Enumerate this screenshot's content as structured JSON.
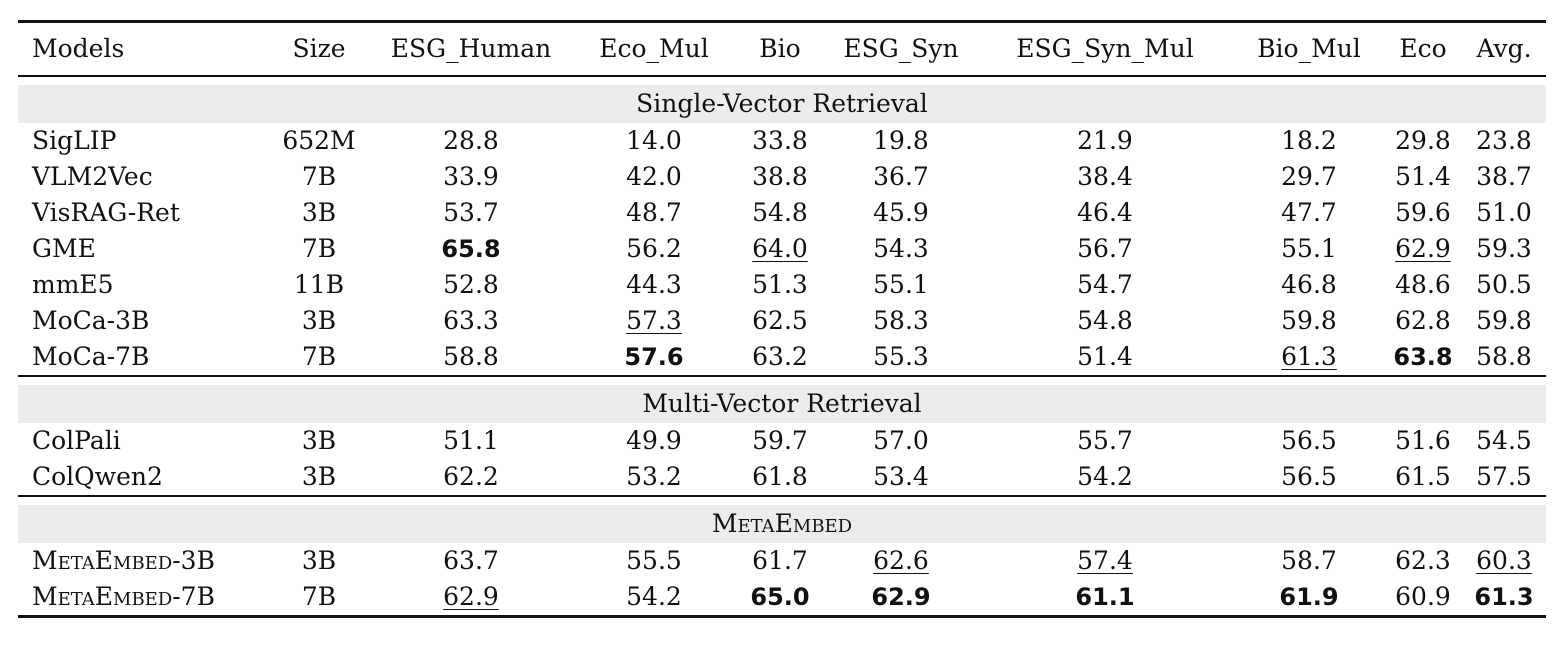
{
  "columns": [
    "Models",
    "Size",
    "ESG_Human",
    "Eco_Mul",
    "Bio",
    "ESG_Syn",
    "ESG_Syn_Mul",
    "Bio_Mul",
    "Eco",
    "Avg."
  ],
  "sections": [
    {
      "title": "Single-Vector Retrieval",
      "rows": [
        {
          "cells": [
            "SigLIP",
            "652M",
            "28.8",
            "14.0",
            "33.8",
            "19.8",
            "21.9",
            "18.2",
            "29.8",
            "23.8"
          ],
          "bold": [],
          "underline": []
        },
        {
          "cells": [
            "VLM2Vec",
            "7B",
            "33.9",
            "42.0",
            "38.8",
            "36.7",
            "38.4",
            "29.7",
            "51.4",
            "38.7"
          ],
          "bold": [],
          "underline": []
        },
        {
          "cells": [
            "VisRAG-Ret",
            "3B",
            "53.7",
            "48.7",
            "54.8",
            "45.9",
            "46.4",
            "47.7",
            "59.6",
            "51.0"
          ],
          "bold": [],
          "underline": []
        },
        {
          "cells": [
            "GME",
            "7B",
            "65.8",
            "56.2",
            "64.0",
            "54.3",
            "56.7",
            "55.1",
            "62.9",
            "59.3"
          ],
          "bold": [
            2
          ],
          "underline": [
            4,
            8
          ]
        },
        {
          "cells": [
            "mmE5",
            "11B",
            "52.8",
            "44.3",
            "51.3",
            "55.1",
            "54.7",
            "46.8",
            "48.6",
            "50.5"
          ],
          "bold": [],
          "underline": []
        },
        {
          "cells": [
            "MoCa-3B",
            "3B",
            "63.3",
            "57.3",
            "62.5",
            "58.3",
            "54.8",
            "59.8",
            "62.8",
            "59.8"
          ],
          "bold": [],
          "underline": [
            3
          ]
        },
        {
          "cells": [
            "MoCa-7B",
            "7B",
            "58.8",
            "57.6",
            "63.2",
            "55.3",
            "51.4",
            "61.3",
            "63.8",
            "58.8"
          ],
          "bold": [
            3,
            8
          ],
          "underline": [
            7
          ]
        }
      ]
    },
    {
      "title": "Multi-Vector Retrieval",
      "rows": [
        {
          "cells": [
            "ColPali",
            "3B",
            "51.1",
            "49.9",
            "59.7",
            "57.0",
            "55.7",
            "56.5",
            "51.6",
            "54.5"
          ],
          "bold": [],
          "underline": []
        },
        {
          "cells": [
            "ColQwen2",
            "3B",
            "62.2",
            "53.2",
            "61.8",
            "53.4",
            "54.2",
            "56.5",
            "61.5",
            "57.5"
          ],
          "bold": [],
          "underline": []
        }
      ]
    },
    {
      "title": "MetaEmbed",
      "smallcaps": true,
      "rows": [
        {
          "cells": [
            "MetaEmbed-3B",
            "3B",
            "63.7",
            "55.5",
            "61.7",
            "62.6",
            "57.4",
            "58.7",
            "62.3",
            "60.3"
          ],
          "bold": [],
          "underline": [
            5,
            6,
            9
          ],
          "smallcaps_name": true
        },
        {
          "cells": [
            "MetaEmbed-7B",
            "7B",
            "62.9",
            "54.2",
            "65.0",
            "62.9",
            "61.1",
            "61.9",
            "60.9",
            "61.3"
          ],
          "bold": [
            4,
            5,
            6,
            7,
            9
          ],
          "underline": [
            2
          ],
          "smallcaps_name": true
        }
      ]
    }
  ]
}
